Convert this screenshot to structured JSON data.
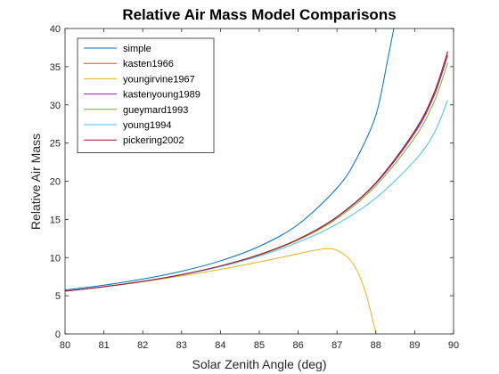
{
  "chart_data": {
    "type": "line",
    "title": "Relative Air Mass Model Comparisons",
    "xlabel": "Solar Zenith Angle (deg)",
    "ylabel": "Relative Air Mass",
    "xlim": [
      80,
      90
    ],
    "ylim": [
      0,
      40
    ],
    "xticks": [
      "80",
      "81",
      "82",
      "83",
      "84",
      "85",
      "86",
      "87",
      "88",
      "89",
      "90"
    ],
    "yticks": [
      "0",
      "5",
      "10",
      "15",
      "20",
      "25",
      "30",
      "35",
      "40"
    ],
    "grid": false,
    "legend_position": "top-left",
    "series": [
      {
        "name": "simple",
        "color": "#0072BD",
        "x": [
          80,
          81,
          82,
          83,
          84,
          85,
          86,
          87,
          87.5,
          88,
          88.3,
          88.5
        ],
        "y": [
          5.76,
          6.39,
          7.19,
          8.21,
          9.57,
          11.47,
          14.34,
          19.11,
          22.93,
          28.65,
          35.8,
          41
        ]
      },
      {
        "name": "kasten1966",
        "color": "#D95319",
        "x": [
          80,
          81,
          82,
          83,
          84,
          85,
          86,
          87,
          88,
          89,
          89.5,
          89.85
        ],
        "y": [
          5.6,
          6.18,
          6.88,
          7.77,
          8.9,
          10.4,
          12.4,
          15.3,
          19.8,
          26.5,
          31.5,
          36.9
        ]
      },
      {
        "name": "youngirvine1967",
        "color": "#EDB120",
        "x": [
          80,
          81,
          82,
          83,
          84,
          85,
          86,
          86.6,
          87,
          87.4,
          87.7,
          87.9,
          88.05
        ],
        "y": [
          5.62,
          6.17,
          6.83,
          7.6,
          8.45,
          9.43,
          10.5,
          11.1,
          10.95,
          9.3,
          6.0,
          2.2,
          -1.0
        ]
      },
      {
        "name": "kastenyoung1989",
        "color": "#7E2F8E",
        "x": [
          80,
          81,
          82,
          83,
          84,
          85,
          86,
          87,
          88,
          89,
          89.5,
          89.85
        ],
        "y": [
          5.6,
          6.18,
          6.88,
          7.77,
          8.9,
          10.36,
          12.4,
          15.3,
          19.7,
          26.3,
          31.2,
          36.5
        ]
      },
      {
        "name": "gueymard1993",
        "color": "#77AC30",
        "x": [
          80,
          81,
          82,
          83,
          84,
          85,
          86,
          87,
          88,
          89,
          89.5,
          89.85
        ],
        "y": [
          5.6,
          6.18,
          6.88,
          7.75,
          8.88,
          10.33,
          12.3,
          15.1,
          19.4,
          25.7,
          30.4,
          35.5
        ]
      },
      {
        "name": "young1994",
        "color": "#4DBEEE",
        "x": [
          80,
          81,
          82,
          83,
          84,
          85,
          86,
          87,
          88,
          89,
          89.5,
          89.85
        ],
        "y": [
          5.6,
          6.17,
          6.86,
          7.73,
          8.82,
          10.2,
          12.0,
          14.4,
          17.8,
          22.7,
          26.3,
          30.6
        ]
      },
      {
        "name": "pickering2002",
        "color": "#A2142F",
        "x": [
          80,
          81,
          82,
          83,
          84,
          85,
          86,
          87,
          88,
          89,
          89.5,
          89.85
        ],
        "y": [
          5.6,
          6.18,
          6.88,
          7.77,
          8.9,
          10.38,
          12.4,
          15.35,
          19.8,
          26.6,
          31.6,
          37.0
        ]
      }
    ]
  }
}
